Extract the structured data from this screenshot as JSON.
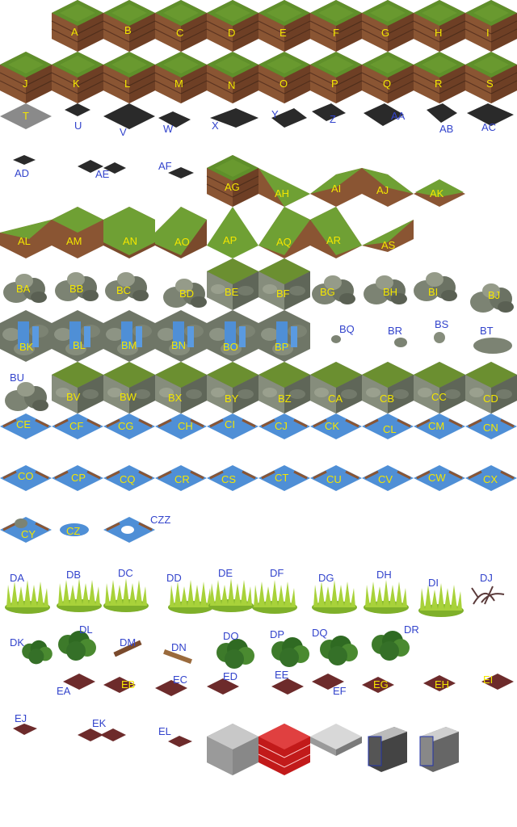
{
  "sheet": {
    "colors": {
      "label_on_tile": "#f3e600",
      "label_blue": "#3344cc",
      "grass": "#5f8f2a",
      "dirt": "#8a4f2e",
      "water": "#4f8fd6",
      "stone": "#7a8070",
      "dark_tile": "#222222",
      "grey_tile": "#8a8a8a",
      "path": "#6d2b2b",
      "brick": "#c21a1a"
    },
    "labels": {
      "A": "A",
      "B": "B",
      "C": "C",
      "D": "D",
      "E": "E",
      "F": "F",
      "G": "G",
      "H": "H",
      "I": "I",
      "J": "J",
      "K": "K",
      "L": "L",
      "M": "M",
      "N": "N",
      "O": "O",
      "P": "P",
      "Q": "Q",
      "R": "R",
      "S": "S",
      "T": "T",
      "U": "U",
      "V": "V",
      "W": "W",
      "X": "X",
      "Y": "Y",
      "Z": "Z",
      "AA": "AA",
      "AB": "AB",
      "AC": "AC",
      "AD": "AD",
      "AE": "AE",
      "AF": "AF",
      "AG": "AG",
      "AH": "AH",
      "AI": "AI",
      "AJ": "AJ",
      "AK": "AK",
      "AL": "AL",
      "AM": "AM",
      "AN": "AN",
      "AO": "AO",
      "AP": "AP",
      "AQ": "AQ",
      "AR": "AR",
      "AS": "AS",
      "BA": "BA",
      "BB": "BB",
      "BC": "BC",
      "BD": "BD",
      "BE": "BE",
      "BF": "BF",
      "BG": "BG",
      "BH": "BH",
      "BI": "BI",
      "BJ": "BJ",
      "BK": "BK",
      "BL": "BL",
      "BM": "BM",
      "BN": "BN",
      "BO": "BO",
      "BP": "BP",
      "BQ": "BQ",
      "BR": "BR",
      "BS": "BS",
      "BT": "BT",
      "BU": "BU",
      "BV": "BV",
      "BW": "BW",
      "BX": "BX",
      "BY": "BY",
      "BZ": "BZ",
      "CA": "CA",
      "CB": "CB",
      "CC": "CC",
      "CD": "CD",
      "CE": "CE",
      "CF": "CF",
      "CG": "CG",
      "CH": "CH",
      "CI": "CI",
      "CJ": "CJ",
      "CK": "CK",
      "CL": "CL",
      "CM": "CM",
      "CN": "CN",
      "CO": "CO",
      "CP": "CP",
      "CQ": "CQ",
      "CR": "CR",
      "CS": "CS",
      "CT": "CT",
      "CU": "CU",
      "CV": "CV",
      "CW": "CW",
      "CX": "CX",
      "CY": "CY",
      "CZ": "CZ",
      "CZZ": "CZZ",
      "DA": "DA",
      "DB": "DB",
      "DC": "DC",
      "DD": "DD",
      "DE": "DE",
      "DF": "DF",
      "DG": "DG",
      "DH": "DH",
      "DI": "DI",
      "DJ": "DJ",
      "DK": "DK",
      "DL": "DL",
      "DM": "DM",
      "DN": "DN",
      "DO": "DO",
      "DP": "DP",
      "DQ": "DQ",
      "DR": "DR",
      "EA": "EA",
      "EB": "EB",
      "EC": "EC",
      "ED": "ED",
      "EE": "EE",
      "EF": "EF",
      "EG": "EG",
      "EH": "EH",
      "EI": "EI",
      "EJ": "EJ",
      "EK": "EK",
      "EL": "EL"
    }
  }
}
